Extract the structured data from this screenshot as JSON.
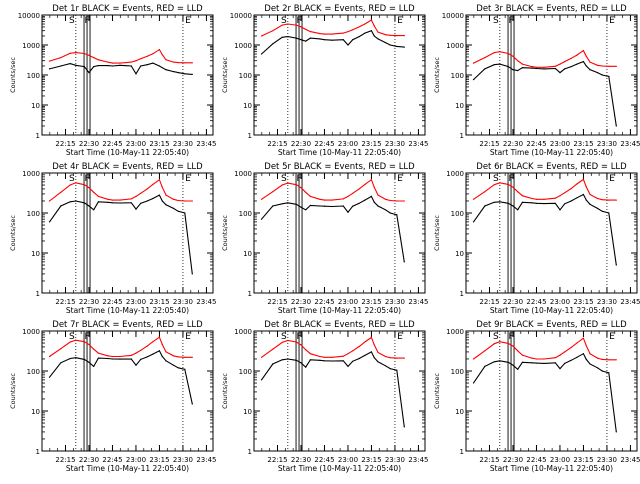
{
  "colors": {
    "background": "#ffffff",
    "axes": "#000000",
    "events": "#000000",
    "lld": "#ff0000"
  },
  "shared": {
    "xlabel": "Start Time (10-May-11 22:05:40)",
    "ylabel": "Counts/sec",
    "x_ticks": [
      22.25,
      22.5,
      22.75,
      23.0,
      23.25,
      23.5,
      23.75
    ],
    "x_tick_labels": [
      "22:15",
      "22:30",
      "22:45",
      "23:00",
      "23:15",
      "23:30",
      "23:45"
    ],
    "x_range": [
      22.0,
      23.82
    ],
    "y_range": [
      1,
      10000
    ],
    "y_ticks": [
      1,
      10,
      100,
      1000,
      10000
    ],
    "y_tick_labels": [
      "1",
      "10",
      "100",
      "1000",
      "10000"
    ],
    "marker_labels": [
      "S",
      "F",
      "E"
    ]
  },
  "chart_data": [
    {
      "type": "line",
      "title": "Det 1r BLACK = Events, RED = LLD",
      "y_range": [
        1,
        10000
      ],
      "y_ticks": [
        1,
        10,
        100,
        1000,
        10000
      ],
      "y_tick_labels": [
        "1",
        "10",
        "100",
        "1000",
        "10000"
      ],
      "x": [
        22.08,
        22.2,
        22.3,
        22.36,
        22.45,
        22.5,
        22.55,
        22.6,
        22.7,
        22.75,
        22.83,
        22.95,
        23.0,
        23.05,
        23.12,
        23.18,
        23.25,
        23.28,
        23.32,
        23.4,
        23.45,
        23.52,
        23.6
      ],
      "series": [
        {
          "name": "Events",
          "values": [
            160,
            200,
            240,
            210,
            190,
            120,
            190,
            205,
            205,
            200,
            210,
            200,
            110,
            200,
            220,
            250,
            200,
            175,
            150,
            130,
            120,
            110,
            105
          ]
        },
        {
          "name": "LLD",
          "values": [
            290,
            380,
            530,
            560,
            520,
            450,
            380,
            320,
            270,
            250,
            250,
            270,
            300,
            350,
            420,
            510,
            700,
            480,
            320,
            270,
            260,
            255,
            255
          ]
        }
      ],
      "markers": {
        "S": 22.36,
        "F": 22.49,
        "E": 23.5
      }
    },
    {
      "type": "line",
      "title": "Det 2r BLACK = Events, RED = LLD",
      "y_range": [
        1,
        10000
      ],
      "y_ticks": [
        1,
        10,
        100,
        1000,
        10000
      ],
      "y_tick_labels": [
        "1",
        "10",
        "100",
        "1000",
        "10000"
      ],
      "x": [
        22.08,
        22.2,
        22.3,
        22.36,
        22.45,
        22.5,
        22.55,
        22.6,
        22.7,
        22.75,
        22.83,
        22.95,
        23.0,
        23.05,
        23.12,
        23.18,
        23.25,
        23.28,
        23.32,
        23.4,
        23.45,
        23.52,
        23.6
      ],
      "series": [
        {
          "name": "Events",
          "values": [
            500,
            1100,
            1800,
            1900,
            1700,
            1500,
            1350,
            1700,
            1600,
            1500,
            1450,
            1500,
            1000,
            1500,
            1900,
            2500,
            3000,
            2000,
            1600,
            1200,
            1000,
            900,
            850
          ]
        },
        {
          "name": "LLD",
          "values": [
            2000,
            3000,
            4600,
            5000,
            4600,
            4000,
            3300,
            2800,
            2400,
            2300,
            2300,
            2500,
            2800,
            3200,
            4000,
            5000,
            6800,
            4300,
            2700,
            2200,
            2100,
            2050,
            2050
          ]
        }
      ],
      "markers": {
        "S": 22.36,
        "F": 22.49,
        "E": 23.5
      }
    },
    {
      "type": "line",
      "title": "Det 3r BLACK = Events, RED = LLD",
      "y_range": [
        1,
        10000
      ],
      "y_ticks": [
        1,
        10,
        100,
        1000,
        10000
      ],
      "y_tick_labels": [
        "1",
        "10",
        "100",
        "1000",
        "10000"
      ],
      "x": [
        22.08,
        22.2,
        22.3,
        22.36,
        22.45,
        22.5,
        22.55,
        22.6,
        22.7,
        22.75,
        22.83,
        22.95,
        23.0,
        23.05,
        23.12,
        23.18,
        23.25,
        23.28,
        23.32,
        23.4,
        23.45,
        23.52,
        23.6
      ],
      "series": [
        {
          "name": "Events",
          "values": [
            70,
            160,
            220,
            230,
            190,
            150,
            140,
            175,
            170,
            165,
            160,
            165,
            120,
            160,
            190,
            230,
            280,
            200,
            150,
            120,
            100,
            90,
            2
          ]
        },
        {
          "name": "LLD",
          "values": [
            250,
            380,
            560,
            600,
            520,
            420,
            300,
            230,
            190,
            180,
            180,
            195,
            230,
            280,
            360,
            460,
            650,
            420,
            270,
            210,
            200,
            195,
            195
          ]
        }
      ],
      "markers": {
        "S": 22.36,
        "F": 22.49,
        "E": 23.5
      }
    },
    {
      "type": "line",
      "title": "Det 4r BLACK = Events, RED = LLD",
      "y_range": [
        1,
        1000
      ],
      "y_ticks": [
        1,
        10,
        100,
        1000
      ],
      "y_tick_labels": [
        "1",
        "10",
        "100",
        "1000"
      ],
      "x": [
        22.08,
        22.2,
        22.3,
        22.36,
        22.45,
        22.5,
        22.55,
        22.6,
        22.7,
        22.75,
        22.83,
        22.95,
        23.0,
        23.05,
        23.12,
        23.18,
        23.25,
        23.28,
        23.32,
        23.4,
        23.45,
        23.52,
        23.6
      ],
      "series": [
        {
          "name": "Events",
          "values": [
            60,
            150,
            190,
            200,
            180,
            150,
            120,
            190,
            185,
            180,
            178,
            180,
            125,
            175,
            200,
            230,
            280,
            200,
            160,
            130,
            110,
            100,
            3
          ]
        },
        {
          "name": "LLD",
          "values": [
            200,
            330,
            500,
            570,
            510,
            430,
            330,
            260,
            220,
            210,
            210,
            225,
            260,
            310,
            400,
            520,
            680,
            440,
            280,
            220,
            205,
            200,
            200
          ]
        }
      ],
      "markers": {
        "S": 22.36,
        "F": 22.49,
        "E": 23.5
      }
    },
    {
      "type": "line",
      "title": "Det 5r BLACK = Events, RED = LLD",
      "y_range": [
        1,
        1000
      ],
      "y_ticks": [
        1,
        10,
        100,
        1000
      ],
      "y_tick_labels": [
        "1",
        "10",
        "100",
        "1000"
      ],
      "x": [
        22.08,
        22.2,
        22.3,
        22.36,
        22.45,
        22.5,
        22.55,
        22.6,
        22.7,
        22.75,
        22.83,
        22.95,
        23.0,
        23.05,
        23.12,
        23.18,
        23.25,
        23.28,
        23.32,
        23.4,
        23.45,
        23.52,
        23.6
      ],
      "series": [
        {
          "name": "Events",
          "values": [
            70,
            150,
            170,
            180,
            165,
            140,
            120,
            155,
            150,
            148,
            145,
            150,
            105,
            148,
            175,
            210,
            260,
            185,
            150,
            120,
            100,
            90,
            6
          ]
        },
        {
          "name": "LLD",
          "values": [
            220,
            340,
            500,
            560,
            510,
            430,
            330,
            260,
            220,
            210,
            210,
            225,
            260,
            310,
            400,
            520,
            680,
            440,
            280,
            220,
            205,
            200,
            200
          ]
        }
      ],
      "markers": {
        "S": 22.36,
        "F": 22.49,
        "E": 23.5
      }
    },
    {
      "type": "line",
      "title": "Det 6r BLACK = Events, RED = LLD",
      "y_range": [
        1,
        1000
      ],
      "y_ticks": [
        1,
        10,
        100,
        1000
      ],
      "y_tick_labels": [
        "1",
        "10",
        "100",
        "1000"
      ],
      "x": [
        22.08,
        22.2,
        22.3,
        22.36,
        22.45,
        22.5,
        22.55,
        22.6,
        22.7,
        22.75,
        22.83,
        22.95,
        23.0,
        23.05,
        23.12,
        23.18,
        23.25,
        23.28,
        23.32,
        23.4,
        23.45,
        23.52,
        23.6
      ],
      "series": [
        {
          "name": "Events",
          "values": [
            60,
            150,
            185,
            190,
            175,
            150,
            120,
            185,
            180,
            175,
            172,
            175,
            120,
            170,
            200,
            240,
            290,
            210,
            165,
            130,
            110,
            100,
            5
          ]
        },
        {
          "name": "LLD",
          "values": [
            220,
            340,
            510,
            570,
            520,
            440,
            340,
            270,
            230,
            220,
            220,
            235,
            270,
            320,
            410,
            530,
            690,
            450,
            290,
            230,
            215,
            210,
            210
          ]
        }
      ],
      "markers": {
        "S": 22.36,
        "F": 22.49,
        "E": 23.5
      }
    },
    {
      "type": "line",
      "title": "Det 7r BLACK = Events, RED = LLD",
      "y_range": [
        1,
        1000
      ],
      "y_ticks": [
        1,
        10,
        100,
        1000
      ],
      "y_tick_labels": [
        "1",
        "10",
        "100",
        "1000"
      ],
      "x": [
        22.08,
        22.2,
        22.3,
        22.36,
        22.45,
        22.5,
        22.55,
        22.6,
        22.7,
        22.75,
        22.83,
        22.95,
        23.0,
        23.05,
        23.12,
        23.18,
        23.25,
        23.28,
        23.32,
        23.4,
        23.45,
        23.52,
        23.6
      ],
      "series": [
        {
          "name": "Events",
          "values": [
            70,
            160,
            205,
            215,
            195,
            165,
            130,
            210,
            205,
            200,
            198,
            200,
            140,
            195,
            225,
            265,
            320,
            230,
            180,
            140,
            120,
            110,
            15
          ]
        },
        {
          "name": "LLD",
          "values": [
            230,
            360,
            530,
            590,
            540,
            460,
            350,
            280,
            240,
            230,
            230,
            245,
            280,
            330,
            420,
            540,
            700,
            460,
            300,
            240,
            225,
            220,
            220
          ]
        }
      ],
      "markers": {
        "S": 22.36,
        "F": 22.49,
        "E": 23.5
      }
    },
    {
      "type": "line",
      "title": "Det 8r BLACK = Events, RED = LLD",
      "y_range": [
        1,
        1000
      ],
      "y_ticks": [
        1,
        10,
        100,
        1000
      ],
      "y_tick_labels": [
        "1",
        "10",
        "100",
        "1000"
      ],
      "x": [
        22.08,
        22.2,
        22.3,
        22.36,
        22.45,
        22.5,
        22.55,
        22.6,
        22.7,
        22.75,
        22.83,
        22.95,
        23.0,
        23.05,
        23.12,
        23.18,
        23.25,
        23.28,
        23.32,
        23.4,
        23.45,
        23.52,
        23.6
      ],
      "series": [
        {
          "name": "Events",
          "values": [
            60,
            150,
            190,
            200,
            185,
            160,
            125,
            190,
            185,
            180,
            178,
            180,
            130,
            175,
            205,
            245,
            300,
            215,
            170,
            135,
            115,
            105,
            4
          ]
        },
        {
          "name": "LLD",
          "values": [
            220,
            350,
            520,
            580,
            530,
            450,
            340,
            270,
            230,
            220,
            220,
            235,
            270,
            320,
            410,
            530,
            690,
            450,
            290,
            230,
            215,
            210,
            210
          ]
        }
      ],
      "markers": {
        "S": 22.36,
        "F": 22.49,
        "E": 23.5
      }
    },
    {
      "type": "line",
      "title": "Det 9r BLACK = Events, RED = LLD",
      "y_range": [
        1,
        1000
      ],
      "y_ticks": [
        1,
        10,
        100,
        1000
      ],
      "y_tick_labels": [
        "1",
        "10",
        "100",
        "1000"
      ],
      "x": [
        22.08,
        22.2,
        22.3,
        22.36,
        22.45,
        22.5,
        22.55,
        22.6,
        22.7,
        22.75,
        22.83,
        22.95,
        23.0,
        23.05,
        23.12,
        23.18,
        23.25,
        23.28,
        23.32,
        23.4,
        23.45,
        23.52,
        23.6
      ],
      "series": [
        {
          "name": "Events",
          "values": [
            50,
            130,
            170,
            180,
            165,
            140,
            110,
            165,
            160,
            158,
            155,
            160,
            115,
            155,
            185,
            220,
            270,
            195,
            150,
            120,
            100,
            90,
            3
          ]
        },
        {
          "name": "LLD",
          "values": [
            200,
            320,
            480,
            540,
            490,
            420,
            320,
            250,
            210,
            200,
            200,
            215,
            250,
            300,
            390,
            500,
            660,
            430,
            270,
            210,
            195,
            190,
            190
          ]
        }
      ],
      "markers": {
        "S": 22.36,
        "F": 22.49,
        "E": 23.5
      }
    }
  ]
}
